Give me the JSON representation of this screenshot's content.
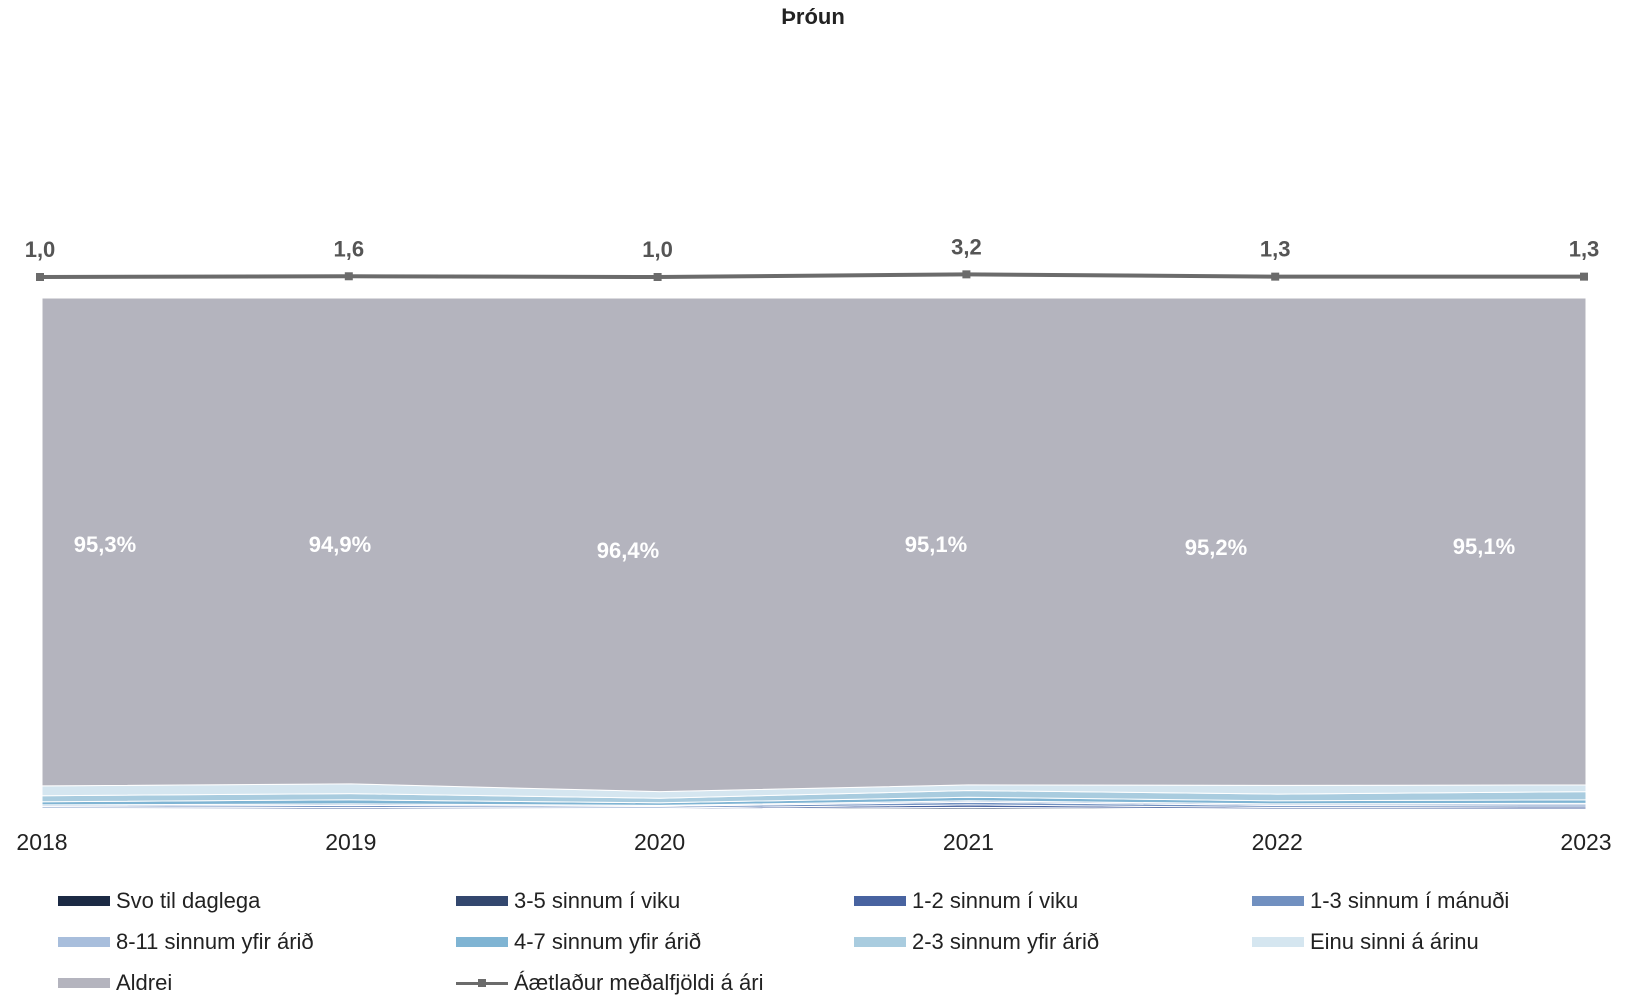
{
  "chart_data": {
    "type": "area",
    "title": "Þróun",
    "categories": [
      "2018",
      "2019",
      "2020",
      "2021",
      "2022",
      "2023"
    ],
    "stacked_percent": true,
    "series": [
      {
        "name": "Svo til daglega",
        "color": "#1c2a44",
        "values": [
          0.1,
          0.1,
          0.1,
          0.2,
          0.1,
          0.1
        ]
      },
      {
        "name": "3-5 sinnum í viku",
        "color": "#33476e",
        "values": [
          0.1,
          0.1,
          0.1,
          0.3,
          0.1,
          0.1
        ]
      },
      {
        "name": "1-2 sinnum í viku",
        "color": "#4863a0",
        "values": [
          0.2,
          0.3,
          0.2,
          0.5,
          0.3,
          0.4
        ]
      },
      {
        "name": "1-3 sinnum í mánuði",
        "color": "#7190c0",
        "values": [
          0.3,
          0.4,
          0.3,
          0.5,
          0.4,
          0.4
        ]
      },
      {
        "name": "8-11 sinnum yfir árið",
        "color": "#a8bedc",
        "values": [
          0.3,
          0.3,
          0.2,
          0.3,
          0.3,
          0.3
        ]
      },
      {
        "name": "4-7 sinnum yfir árið",
        "color": "#7fb4d3",
        "values": [
          0.6,
          0.8,
          0.5,
          0.7,
          0.6,
          0.7
        ]
      },
      {
        "name": "2-3 sinnum yfir árið",
        "color": "#a9ccdf",
        "values": [
          1.2,
          1.2,
          0.9,
          1.3,
          1.3,
          1.6
        ]
      },
      {
        "name": "Einu sinni á árinu",
        "color": "#d5e6f0",
        "values": [
          1.9,
          1.9,
          1.3,
          1.1,
          1.7,
          1.3
        ]
      },
      {
        "name": "Aldrei",
        "color": "#b4b4be",
        "values": [
          95.3,
          94.9,
          96.4,
          95.1,
          95.2,
          95.1
        ]
      }
    ],
    "aldrei_labels": [
      "95,3%",
      "94,9%",
      "96,4%",
      "95,1%",
      "95,2%",
      "95,1%"
    ],
    "line_series": {
      "name": "Áætlaður meðalfjöldi á ári",
      "color": "#6b6b6b",
      "values": [
        1.0,
        1.6,
        1.0,
        3.2,
        1.3,
        1.3
      ],
      "labels": [
        "1,0",
        "1,6",
        "1,0",
        "3,2",
        "1,3",
        "1,3"
      ]
    },
    "ylim": [
      0,
      100
    ],
    "xlabel": "",
    "ylabel": "",
    "grid": false,
    "legend_position": "bottom"
  }
}
